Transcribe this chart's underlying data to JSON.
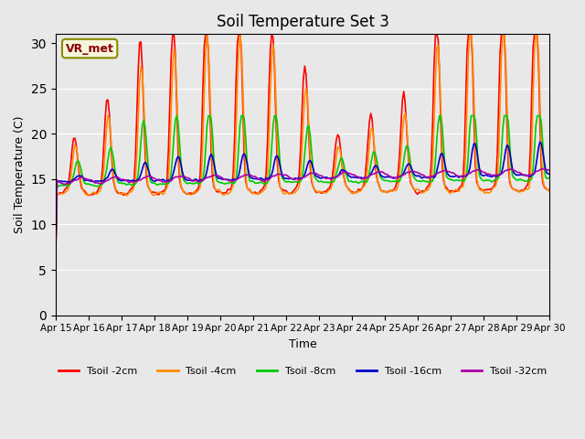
{
  "title": "Soil Temperature Set 3",
  "xlabel": "Time",
  "ylabel": "Soil Temperature (C)",
  "ylim": [
    0,
    31
  ],
  "yticks": [
    0,
    5,
    10,
    15,
    20,
    25,
    30
  ],
  "bg_color": "#e8e8e8",
  "plot_bg_color": "#e8e8e8",
  "annotation_text": "VR_met",
  "annotation_color": "#8B0000",
  "annotation_bg": "#f5f5dc",
  "series_labels": [
    "Tsoil -2cm",
    "Tsoil -4cm",
    "Tsoil -8cm",
    "Tsoil -16cm",
    "Tsoil -32cm"
  ],
  "series_colors": [
    "#FF0000",
    "#FF8C00",
    "#00CC00",
    "#0000CD",
    "#AA00AA"
  ],
  "series_lw": [
    1.2,
    1.2,
    1.2,
    1.2,
    1.2
  ],
  "x_tick_labels": [
    "Apr 15",
    "Apr 16",
    "Apr 17",
    "Apr 18",
    "Apr 19",
    "Apr 20",
    "Apr 21",
    "Apr 22",
    "Apr 23",
    "Apr 24",
    "Apr 25",
    "Apr 26",
    "Apr 27",
    "Apr 28",
    "Apr 29",
    "Apr 30"
  ],
  "n_points_per_day": 24,
  "n_days": 15
}
